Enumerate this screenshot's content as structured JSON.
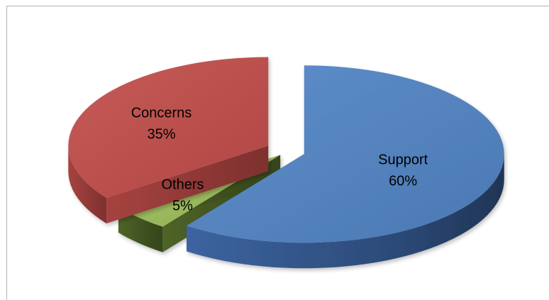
{
  "chart_data": {
    "type": "pie",
    "style": "3d-exploded",
    "legend": "none",
    "slices": [
      {
        "label": "Support",
        "value": 60,
        "value_label": "60%",
        "color": "#4F81BD"
      },
      {
        "label": "Others",
        "value": 5,
        "value_label": "5%",
        "color": "#9BBB59"
      },
      {
        "label": "Concerns",
        "value": 35,
        "value_label": "35%",
        "color": "#C0504D"
      }
    ]
  }
}
